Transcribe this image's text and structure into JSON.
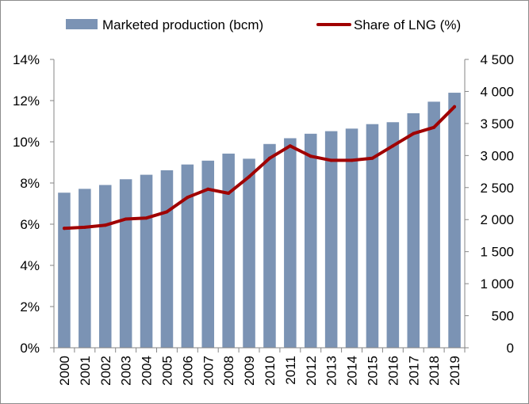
{
  "chart_data": {
    "type": "bar",
    "categories": [
      "2000",
      "2001",
      "2002",
      "2003",
      "2004",
      "2005",
      "2006",
      "2007",
      "2008",
      "2009",
      "2010",
      "2011",
      "2012",
      "2013",
      "2014",
      "2015",
      "2016",
      "2017",
      "2018",
      "2019"
    ],
    "series": [
      {
        "name": "Marketed production (bcm)",
        "type": "bar",
        "axis": "right",
        "color": "#7b93b4",
        "values": [
          2420,
          2480,
          2540,
          2630,
          2700,
          2770,
          2860,
          2920,
          3030,
          2950,
          3180,
          3270,
          3340,
          3380,
          3420,
          3490,
          3520,
          3660,
          3840,
          3980
        ]
      },
      {
        "name": "Share of LNG (%)",
        "type": "line",
        "axis": "left",
        "color": "#a00000",
        "values": [
          5.8,
          5.85,
          5.95,
          6.25,
          6.3,
          6.6,
          7.3,
          7.7,
          7.5,
          8.3,
          9.2,
          9.8,
          9.3,
          9.1,
          9.1,
          9.2,
          9.8,
          10.4,
          10.7,
          11.7
        ]
      }
    ],
    "y_left": {
      "min": 0,
      "max": 14,
      "ticks": [
        0,
        2,
        4,
        6,
        8,
        10,
        12,
        14
      ],
      "tick_labels": [
        "0%",
        "2%",
        "4%",
        "6%",
        "8%",
        "10%",
        "12%",
        "14%"
      ]
    },
    "y_right": {
      "min": 0,
      "max": 4500,
      "ticks": [
        0,
        500,
        1000,
        1500,
        2000,
        2500,
        3000,
        3500,
        4000,
        4500
      ],
      "tick_labels": [
        "0",
        "500",
        "1 000",
        "1 500",
        "2 000",
        "2 500",
        "3 000",
        "3 500",
        "4 000",
        "4 500"
      ]
    },
    "legend": {
      "position": "top",
      "bar_label": "Marketed production (bcm)",
      "line_label": "Share of LNG (%)"
    },
    "title": "",
    "grid": false
  }
}
